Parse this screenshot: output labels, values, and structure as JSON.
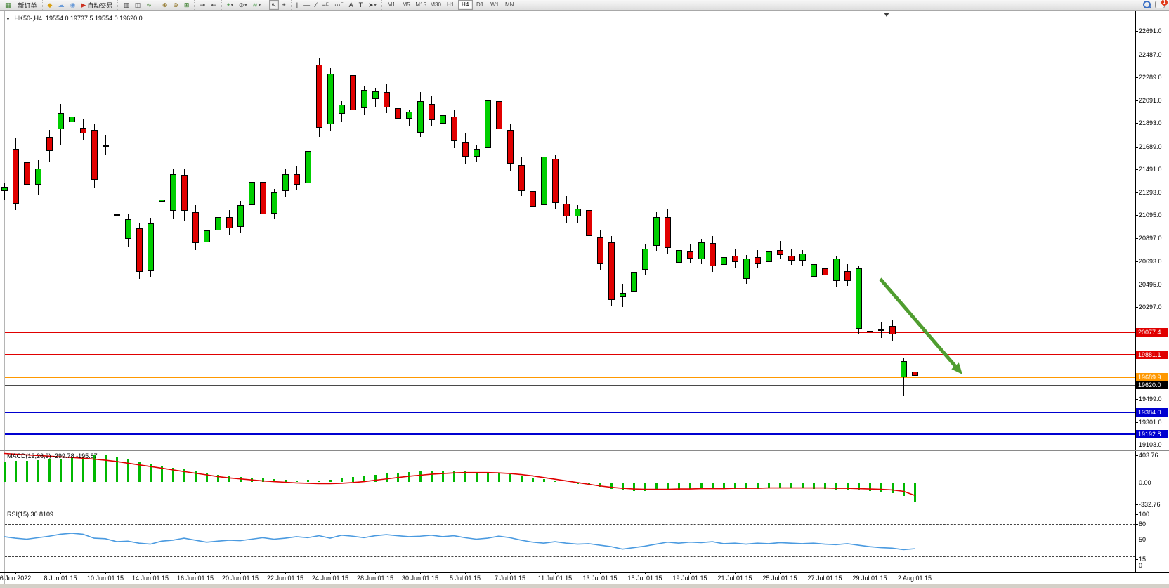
{
  "toolbar": {
    "new_order_label": "新订单",
    "autotrade_label": "自动交易",
    "groups": [
      {
        "items": [
          {
            "glyph": "▦",
            "color": "#3a7d2c",
            "name": "terminal-icon"
          },
          {
            "label": "新订单",
            "name": "new-order-button"
          }
        ]
      },
      {
        "items": [
          {
            "glyph": "◆",
            "color": "#d8a013",
            "name": "navigator-icon"
          },
          {
            "glyph": "☁",
            "color": "#6a9bd8",
            "name": "market-watch-icon"
          },
          {
            "glyph": "◉",
            "color": "#6a9bd8",
            "name": "signals-icon"
          },
          {
            "glyph": "▶",
            "color": "#cc3322",
            "label": "自动交易",
            "name": "autotrading-button"
          }
        ]
      },
      {
        "items": [
          {
            "glyph": "▥",
            "color": "#444444",
            "name": "bar-chart-button"
          },
          {
            "glyph": "◫",
            "color": "#444444",
            "name": "candlestick-chart-button"
          },
          {
            "glyph": "∿",
            "color": "#3a7d2c",
            "name": "line-chart-button"
          }
        ]
      },
      {
        "items": [
          {
            "glyph": "⊕",
            "color": "#8a6d1a",
            "name": "zoom-in-button"
          },
          {
            "glyph": "⊖",
            "color": "#8a6d1a",
            "name": "zoom-out-button"
          },
          {
            "glyph": "⊞",
            "color": "#3a7d2c",
            "name": "tile-windows-button"
          }
        ]
      },
      {
        "items": [
          {
            "glyph": "⇥",
            "color": "#444444",
            "name": "auto-scroll-button"
          },
          {
            "glyph": "⇤",
            "color": "#444444",
            "name": "chart-shift-button"
          }
        ]
      },
      {
        "items": [
          {
            "glyph": "+",
            "color": "#2c8a2c",
            "caret": true,
            "name": "new-chart-button"
          },
          {
            "glyph": "⊙",
            "color": "#444444",
            "caret": true,
            "name": "periods-button"
          },
          {
            "glyph": "≋",
            "color": "#2c8a2c",
            "caret": true,
            "name": "indicators-button"
          }
        ]
      },
      {
        "items": [
          {
            "glyph": "↖",
            "color": "#222222",
            "active": true,
            "name": "cursor-button"
          },
          {
            "glyph": "+",
            "color": "#222222",
            "name": "crosshair-button"
          }
        ]
      },
      {
        "items": [
          {
            "glyph": "|",
            "color": "#222222",
            "name": "vertical-line-button"
          },
          {
            "glyph": "—",
            "color": "#222222",
            "name": "horizontal-line-button"
          },
          {
            "glyph": "⁄",
            "color": "#222222",
            "name": "trendline-button"
          },
          {
            "glyph": "≡",
            "sub": "E",
            "color": "#222222",
            "name": "equidistant-channel-button"
          },
          {
            "glyph": "⋯",
            "sub": "F",
            "color": "#222222",
            "name": "fibonacci-button"
          },
          {
            "glyph": "A",
            "color": "#222222",
            "name": "text-button"
          },
          {
            "glyph": "T",
            "color": "#222222",
            "name": "text-label-button"
          },
          {
            "glyph": "➤",
            "color": "#444444",
            "caret": true,
            "name": "arrows-button"
          }
        ]
      }
    ],
    "timeframes": [
      "M1",
      "M5",
      "M15",
      "M30",
      "H1",
      "H4",
      "D1",
      "W1",
      "MN"
    ],
    "active_timeframe": "H4",
    "chat_badge": "1"
  },
  "chart": {
    "title_symbol": "HK50-,H4",
    "title_ohlc": "19554.0 19737.5 19554.0 19620.0",
    "macd_label": "MACD(12,26,9)",
    "macd_values": "-299.78 -195.87",
    "rsi_label": "RSI(15)",
    "rsi_value": "30.8109"
  },
  "chart_data": {
    "type": "candlestick",
    "symbol": "HK50-",
    "timeframe": "H4",
    "current_bar": {
      "open": 19554.0,
      "high": 19737.5,
      "low": 19554.0,
      "close": 19620.0
    },
    "up_color": "#00cf00",
    "down_color": "#e10000",
    "ylim": [
      19055,
      22780
    ],
    "y_axis_ticks": [
      22691.0,
      22487.0,
      22289.0,
      22091.0,
      21893.0,
      21689.0,
      21491.0,
      21293.0,
      21095.0,
      20897.0,
      20693.0,
      20495.0,
      20297.0,
      19499.0,
      19301.0,
      19103.0
    ],
    "levels": [
      {
        "price": 22770.0,
        "style": "dashed",
        "color": "#444444",
        "width": 1,
        "tag": false
      },
      {
        "price": 20077.4,
        "style": "solid",
        "color": "#e00000",
        "width": 2,
        "tag": true
      },
      {
        "price": 19881.1,
        "style": "solid",
        "color": "#e00000",
        "width": 2,
        "tag": true
      },
      {
        "price": 19689.9,
        "style": "solid",
        "color": "#ff9800",
        "width": 2,
        "tag": true
      },
      {
        "price": 19620.0,
        "style": "solid",
        "color": "#4a4a4a",
        "width": 1,
        "tag": true,
        "tag_bg": "#000000"
      },
      {
        "price": 19384.0,
        "style": "solid",
        "color": "#0000d0",
        "width": 2,
        "tag": true
      },
      {
        "price": 19192.8,
        "style": "solid",
        "color": "#0000d0",
        "width": 2,
        "tag": true
      }
    ],
    "candles": [
      [
        21300,
        21370,
        21230,
        21340
      ],
      [
        21670,
        21760,
        21140,
        21190
      ],
      [
        21550,
        21640,
        21260,
        21360
      ],
      [
        21360,
        21570,
        21270,
        21500
      ],
      [
        21770,
        21830,
        21560,
        21650
      ],
      [
        21840,
        22060,
        21700,
        21980
      ],
      [
        21900,
        22010,
        21800,
        21950
      ],
      [
        21850,
        21930,
        21750,
        21800
      ],
      [
        21830,
        21890,
        21330,
        21400
      ],
      [
        21700,
        21790,
        21610,
        21690
      ],
      [
        21090,
        21180,
        21000,
        21100
      ],
      [
        20890,
        21110,
        20820,
        21060
      ],
      [
        20980,
        21030,
        20540,
        20600
      ],
      [
        20610,
        21070,
        20560,
        21020
      ],
      [
        21210,
        21290,
        21130,
        21230
      ],
      [
        21130,
        21500,
        21060,
        21450
      ],
      [
        21440,
        21500,
        21040,
        21130
      ],
      [
        21120,
        21180,
        20790,
        20850
      ],
      [
        20860,
        21000,
        20780,
        20960
      ],
      [
        20960,
        21120,
        20880,
        21080
      ],
      [
        21080,
        21140,
        20920,
        20980
      ],
      [
        20990,
        21220,
        20940,
        21180
      ],
      [
        21180,
        21420,
        21120,
        21380
      ],
      [
        21380,
        21440,
        21040,
        21100
      ],
      [
        21110,
        21320,
        21060,
        21290
      ],
      [
        21300,
        21500,
        21250,
        21450
      ],
      [
        21450,
        21520,
        21310,
        21360
      ],
      [
        21370,
        21700,
        21330,
        21650
      ],
      [
        22400,
        22460,
        21770,
        21850
      ],
      [
        21880,
        22370,
        21820,
        22320
      ],
      [
        21970,
        22080,
        21900,
        22050
      ],
      [
        22310,
        22380,
        21940,
        22000
      ],
      [
        22020,
        22210,
        21960,
        22180
      ],
      [
        22100,
        22200,
        22030,
        22170
      ],
      [
        22160,
        22230,
        21980,
        22030
      ],
      [
        22020,
        22090,
        21890,
        21930
      ],
      [
        21930,
        22010,
        21870,
        21990
      ],
      [
        21810,
        22160,
        21770,
        22080
      ],
      [
        22060,
        22130,
        21860,
        21920
      ],
      [
        21890,
        21990,
        21830,
        21960
      ],
      [
        21950,
        22010,
        21680,
        21740
      ],
      [
        21730,
        21800,
        21540,
        21600
      ],
      [
        21600,
        21700,
        21550,
        21670
      ],
      [
        21680,
        22150,
        21640,
        22090
      ],
      [
        22080,
        22120,
        21790,
        21840
      ],
      [
        21830,
        21880,
        21480,
        21540
      ],
      [
        21530,
        21600,
        21260,
        21300
      ],
      [
        21300,
        21360,
        21120,
        21170
      ],
      [
        21180,
        21650,
        21130,
        21600
      ],
      [
        21580,
        21620,
        21150,
        21200
      ],
      [
        21190,
        21260,
        21020,
        21080
      ],
      [
        21080,
        21180,
        21030,
        21150
      ],
      [
        21140,
        21200,
        20860,
        20910
      ],
      [
        20900,
        20960,
        20620,
        20670
      ],
      [
        20860,
        20910,
        20310,
        20360
      ],
      [
        20380,
        20500,
        20300,
        20420
      ],
      [
        20430,
        20640,
        20390,
        20600
      ],
      [
        20620,
        20840,
        20570,
        20800
      ],
      [
        20830,
        21120,
        20780,
        21080
      ],
      [
        21080,
        21150,
        20760,
        20810
      ],
      [
        20680,
        20820,
        20630,
        20790
      ],
      [
        20780,
        20840,
        20680,
        20720
      ],
      [
        20710,
        20890,
        20670,
        20860
      ],
      [
        20850,
        20910,
        20600,
        20650
      ],
      [
        20660,
        20760,
        20610,
        20730
      ],
      [
        20740,
        20800,
        20640,
        20690
      ],
      [
        20540,
        20750,
        20500,
        20720
      ],
      [
        20730,
        20790,
        20630,
        20670
      ],
      [
        20690,
        20800,
        20640,
        20780
      ],
      [
        20790,
        20870,
        20710,
        20750
      ],
      [
        20740,
        20800,
        20660,
        20700
      ],
      [
        20700,
        20790,
        20650,
        20760
      ],
      [
        20560,
        20700,
        20510,
        20670
      ],
      [
        20630,
        20690,
        20520,
        20570
      ],
      [
        20520,
        20740,
        20470,
        20720
      ],
      [
        20610,
        20670,
        20480,
        20520
      ],
      [
        20110,
        20650,
        20060,
        20630
      ],
      [
        20090,
        20160,
        20010,
        20080
      ],
      [
        20100,
        20170,
        20030,
        20090
      ],
      [
        20130,
        20190,
        20000,
        20060
      ],
      [
        19690,
        19850,
        19530,
        19830
      ],
      [
        19740,
        19780,
        19600,
        19700
      ]
    ],
    "x_labels": [
      "6 Jun 2022",
      "8 Jun 01:15",
      "10 Jun 01:15",
      "14 Jun 01:15",
      "16 Jun 01:15",
      "20 Jun 01:15",
      "22 Jun 01:15",
      "24 Jun 01:15",
      "28 Jun 01:15",
      "30 Jun 01:15",
      "5 Jul 01:15",
      "7 Jul 01:15",
      "11 Jul 01:15",
      "13 Jul 01:15",
      "15 Jul 01:15",
      "19 Jul 01:15",
      "21 Jul 01:15",
      "25 Jul 01:15",
      "27 Jul 01:15",
      "29 Jul 01:15",
      "2 Aug 01:15"
    ],
    "indicators": {
      "macd": {
        "name": "MACD(12,26,9)",
        "current_values": [
          -299.78,
          -195.87
        ],
        "hist_color": "#00b800",
        "signal_color": "#e00000",
        "ticks": [
          {
            "v": 403.76,
            "label": "403.76"
          },
          {
            "v": 0,
            "label": "0.00"
          },
          {
            "v": -332.76,
            "label": "-332.76"
          }
        ],
        "histogram": [
          300,
          315,
          325,
          330,
          340,
          355,
          370,
          385,
          400,
          400,
          380,
          350,
          310,
          270,
          240,
          220,
          200,
          170,
          140,
          115,
          95,
          80,
          70,
          55,
          45,
          40,
          30,
          35,
          20,
          40,
          60,
          75,
          95,
          115,
          130,
          140,
          150,
          165,
          170,
          175,
          170,
          160,
          150,
          155,
          145,
          125,
          100,
          70,
          45,
          20,
          -5,
          -25,
          -45,
          -70,
          -100,
          -120,
          -130,
          -130,
          -120,
          -110,
          -105,
          -100,
          -95,
          -95,
          -95,
          -95,
          -95,
          -95,
          -90,
          -90,
          -90,
          -90,
          -95,
          -100,
          -105,
          -110,
          -115,
          -130,
          -145,
          -160,
          -200,
          -299.78
        ],
        "signal": [
          430,
          420,
          410,
          400,
          390,
          380,
          370,
          360,
          345,
          330,
          310,
          285,
          260,
          235,
          210,
          185,
          160,
          135,
          110,
          85,
          65,
          50,
          35,
          20,
          10,
          0,
          -10,
          -15,
          -20,
          -20,
          -15,
          -5,
          10,
          30,
          50,
          70,
          90,
          105,
          120,
          130,
          140,
          145,
          145,
          145,
          140,
          130,
          115,
          95,
          70,
          45,
          20,
          -5,
          -30,
          -55,
          -75,
          -90,
          -100,
          -105,
          -105,
          -105,
          -100,
          -100,
          -95,
          -95,
          -95,
          -90,
          -90,
          -90,
          -85,
          -85,
          -85,
          -85,
          -85,
          -85,
          -90,
          -90,
          -95,
          -100,
          -105,
          -115,
          -135,
          -195.87
        ]
      },
      "rsi": {
        "name": "RSI(15)",
        "current_value": 30.8109,
        "color": "#4a9ae0",
        "levels": [
          80,
          50,
          15
        ],
        "ticks": [
          {
            "v": 100,
            "label": "100"
          },
          {
            "v": 80,
            "label": "80"
          },
          {
            "v": 50,
            "label": "50"
          },
          {
            "v": 15,
            "label": "15",
            "dy": 4
          },
          {
            "v": 0,
            "label": "0",
            "dy": 2
          }
        ],
        "series": [
          55,
          52,
          50,
          53,
          56,
          60,
          62,
          60,
          52,
          51,
          45,
          46,
          42,
          40,
          46,
          48,
          52,
          48,
          44,
          46,
          48,
          47,
          50,
          53,
          50,
          52,
          55,
          53,
          57,
          52,
          58,
          56,
          53,
          57,
          59,
          57,
          55,
          56,
          58,
          55,
          57,
          53,
          50,
          52,
          56,
          53,
          48,
          44,
          42,
          45,
          42,
          40,
          41,
          38,
          35,
          30,
          33,
          36,
          40,
          44,
          42,
          44,
          43,
          45,
          41,
          42,
          40,
          42,
          41,
          43,
          42,
          41,
          42,
          40,
          39,
          41,
          38,
          35,
          33,
          32,
          29,
          30.81
        ]
      }
    },
    "annotations": {
      "arrow": {
        "from": [
          1253,
          396
        ],
        "to": [
          1370,
          532
        ],
        "color": "#4f9d2f",
        "width": 5
      }
    }
  }
}
